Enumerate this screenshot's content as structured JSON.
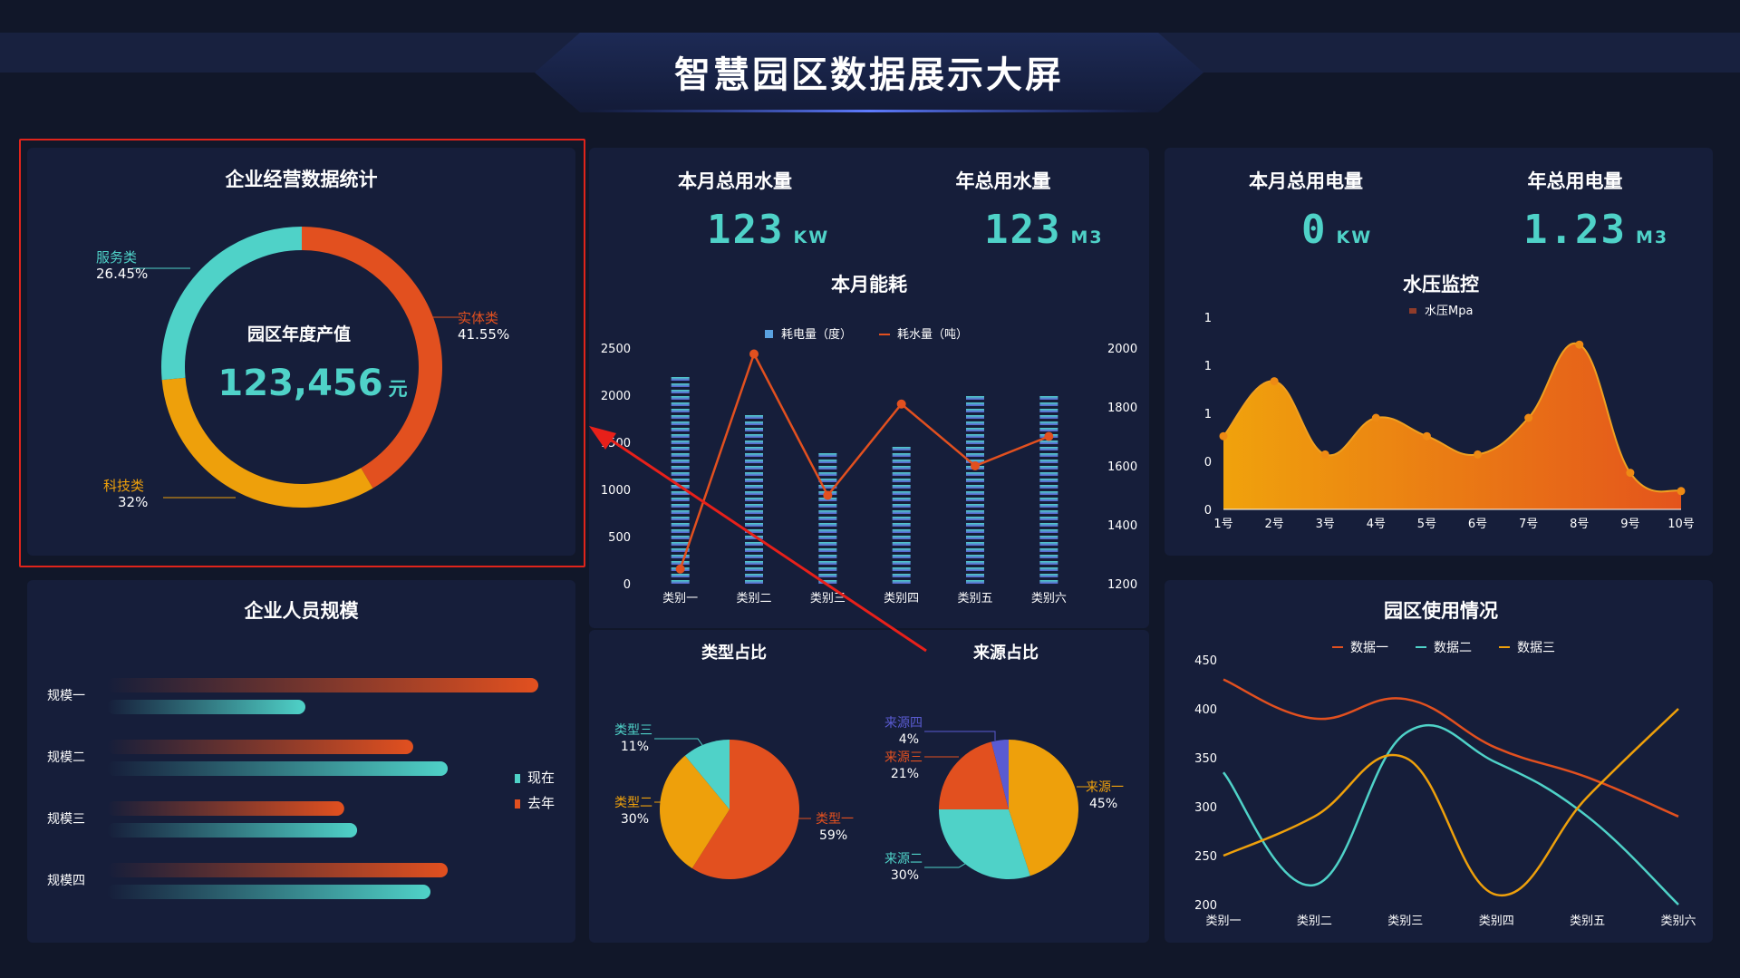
{
  "header": {
    "title": "智慧园区数据展示大屏"
  },
  "colors": {
    "teal": "#4fd2c8",
    "orange_red": "#e2501f",
    "amber": "#eea00b",
    "purple": "#5a5bd2",
    "panel_bg": "#161e3a",
    "page_bg": "#111729"
  },
  "enterprise": {
    "title": "企业经营数据统计",
    "center_label": "园区年度产值",
    "center_value": "123,456",
    "center_unit": "元",
    "segments": [
      {
        "name": "实体类",
        "percent_label": "41.55%",
        "value": 41.55,
        "color": "#e2501f"
      },
      {
        "name": "科技类",
        "percent_label": "32%",
        "value": 32,
        "color": "#eea00b"
      },
      {
        "name": "服务类",
        "percent_label": "26.45%",
        "value": 26.45,
        "color": "#4fd2c8"
      }
    ]
  },
  "water": {
    "month_label": "本月总用水量",
    "month_value": "123",
    "month_unit": "KW",
    "year_label": "年总用水量",
    "year_value": "123",
    "year_unit": "M3"
  },
  "electric": {
    "month_label": "本月总用电量",
    "month_value": "0",
    "month_unit": "KW",
    "year_label": "年总用电量",
    "year_value": "1.23",
    "year_unit": "M3"
  },
  "energy": {
    "title": "本月能耗",
    "legend_bar": "耗电量（度）",
    "legend_line": "耗水量（吨）",
    "chart_data": {
      "type": "bar",
      "categories": [
        "类别一",
        "类别二",
        "类别三",
        "类别四",
        "类别五",
        "类别六"
      ],
      "series": [
        {
          "name": "耗电量（度）",
          "type": "bar",
          "axis": "left",
          "values": [
            2250,
            1800,
            1400,
            1500,
            2000,
            2000
          ]
        },
        {
          "name": "耗水量（吨）",
          "type": "line",
          "axis": "right",
          "values": [
            1250,
            1980,
            1500,
            1810,
            1600,
            1700
          ]
        }
      ],
      "y_left": {
        "ticks": [
          "0",
          "500",
          "1000",
          "1500",
          "2000",
          "2500"
        ],
        "min": 0,
        "max": 2500
      },
      "y_right": {
        "ticks": [
          "1200",
          "1400",
          "1600",
          "1800",
          "2000"
        ],
        "min": 1200,
        "max": 2000
      }
    }
  },
  "pressure": {
    "title": "水压监控",
    "legend": "水压Mpa",
    "chart_data": {
      "type": "area",
      "categories": [
        "1号",
        "2号",
        "3号",
        "4号",
        "5号",
        "6号",
        "7号",
        "8号",
        "9号",
        "10号"
      ],
      "values": [
        0.8,
        1.4,
        0.6,
        1.0,
        0.8,
        0.6,
        1.0,
        1.8,
        0.4,
        0.2
      ],
      "max": 2,
      "y_ticks": [
        "0",
        "0",
        "1",
        "1",
        "1"
      ]
    }
  },
  "staff": {
    "title": "企业人员规模",
    "legend_now": "现在",
    "legend_last": "去年",
    "chart_data": {
      "type": "bar",
      "categories": [
        "规模一",
        "规模二",
        "规模三",
        "规模四"
      ],
      "max": 100,
      "series": [
        {
          "name": "去年",
          "values": [
            100,
            71,
            55,
            79
          ]
        },
        {
          "name": "现在",
          "values": [
            46,
            79,
            58,
            75
          ]
        }
      ]
    }
  },
  "type_ratio": {
    "title": "类型占比",
    "chart_data": {
      "type": "pie",
      "slices": [
        {
          "name": "类型一",
          "label": "59%",
          "value": 59,
          "color": "#e2501f"
        },
        {
          "name": "类型二",
          "label": "30%",
          "value": 30,
          "color": "#eea00b"
        },
        {
          "name": "类型三",
          "label": "11%",
          "value": 11,
          "color": "#4fd2c8"
        }
      ]
    }
  },
  "source_ratio": {
    "title": "来源占比",
    "chart_data": {
      "type": "pie",
      "slices": [
        {
          "name": "来源一",
          "label": "45%",
          "value": 45,
          "color": "#eea00b"
        },
        {
          "name": "来源二",
          "label": "30%",
          "value": 30,
          "color": "#4fd2c8"
        },
        {
          "name": "来源三",
          "label": "21%",
          "value": 21,
          "color": "#e2501f"
        },
        {
          "name": "来源四",
          "label": "4%",
          "value": 4,
          "color": "#5a5bd2"
        }
      ]
    }
  },
  "usage": {
    "title": "园区使用情况",
    "chart_data": {
      "type": "line",
      "categories": [
        "类别一",
        "类别二",
        "类别三",
        "类别四",
        "类别五",
        "类别六"
      ],
      "y_ticks": [
        "200",
        "250",
        "300",
        "350",
        "400",
        "450"
      ],
      "ylim": [
        200,
        450
      ],
      "series": [
        {
          "name": "数据一",
          "color": "#e2501f",
          "values": [
            430,
            390,
            410,
            360,
            330,
            290
          ]
        },
        {
          "name": "数据二",
          "color": "#4fd2c8",
          "values": [
            335,
            220,
            375,
            345,
            290,
            200
          ]
        },
        {
          "name": "数据三",
          "color": "#eea00b",
          "values": [
            250,
            290,
            350,
            210,
            310,
            400
          ]
        }
      ]
    }
  }
}
